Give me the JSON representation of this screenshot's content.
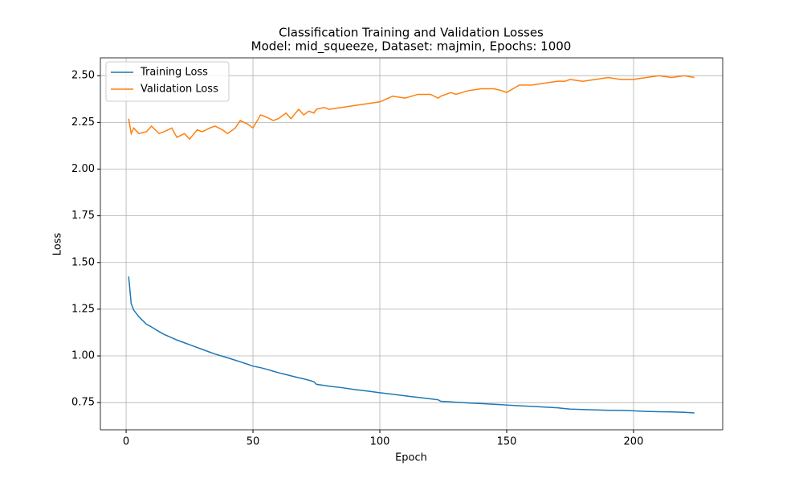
{
  "chart_data": {
    "type": "line",
    "title": "Classification Training and Validation Losses",
    "subtitle": "Model: mid_squeeze, Dataset: majmin, Epochs: 1000",
    "x_label": "Epoch",
    "y_label": "Loss",
    "x": [
      1,
      2,
      3,
      5,
      8,
      10,
      13,
      15,
      18,
      20,
      23,
      25,
      28,
      30,
      33,
      35,
      38,
      40,
      43,
      45,
      48,
      50,
      53,
      55,
      58,
      60,
      63,
      65,
      68,
      70,
      72,
      74,
      75,
      78,
      80,
      85,
      90,
      95,
      100,
      105,
      110,
      115,
      120,
      123,
      124,
      128,
      130,
      135,
      140,
      145,
      148,
      150,
      155,
      160,
      165,
      170,
      173,
      175,
      180,
      185,
      190,
      195,
      200,
      205,
      210,
      215,
      220,
      224
    ],
    "series": [
      {
        "name": "Training Loss",
        "color": "#1f77b4",
        "values": [
          1.425,
          1.28,
          1.245,
          1.21,
          1.17,
          1.155,
          1.13,
          1.115,
          1.097,
          1.085,
          1.07,
          1.06,
          1.045,
          1.035,
          1.02,
          1.01,
          0.998,
          0.99,
          0.977,
          0.968,
          0.955,
          0.945,
          0.937,
          0.93,
          0.918,
          0.91,
          0.9,
          0.893,
          0.883,
          0.877,
          0.87,
          0.862,
          0.848,
          0.842,
          0.838,
          0.83,
          0.82,
          0.812,
          0.803,
          0.795,
          0.786,
          0.778,
          0.77,
          0.765,
          0.757,
          0.754,
          0.752,
          0.748,
          0.745,
          0.741,
          0.739,
          0.737,
          0.733,
          0.73,
          0.726,
          0.722,
          0.718,
          0.715,
          0.713,
          0.711,
          0.709,
          0.708,
          0.706,
          0.703,
          0.701,
          0.7,
          0.698,
          0.695
        ]
      },
      {
        "name": "Validation Loss",
        "color": "#ff7f0e",
        "values": [
          2.27,
          2.19,
          2.22,
          2.19,
          2.2,
          2.23,
          2.19,
          2.2,
          2.22,
          2.17,
          2.19,
          2.16,
          2.21,
          2.2,
          2.22,
          2.23,
          2.21,
          2.19,
          2.22,
          2.26,
          2.24,
          2.22,
          2.29,
          2.28,
          2.26,
          2.27,
          2.3,
          2.27,
          2.32,
          2.29,
          2.31,
          2.3,
          2.32,
          2.33,
          2.32,
          2.33,
          2.34,
          2.35,
          2.36,
          2.39,
          2.38,
          2.4,
          2.4,
          2.38,
          2.39,
          2.41,
          2.4,
          2.42,
          2.43,
          2.43,
          2.42,
          2.41,
          2.45,
          2.45,
          2.46,
          2.47,
          2.47,
          2.48,
          2.47,
          2.48,
          2.49,
          2.48,
          2.48,
          2.49,
          2.5,
          2.49,
          2.5,
          2.49
        ]
      }
    ],
    "xlim": [
      -10.15,
      235.15
    ],
    "xticks": [
      0,
      50,
      100,
      150,
      200
    ],
    "ylim": [
      0.6045,
      2.5955
    ],
    "yticks": [
      0.75,
      {
        "value": 1,
        "label": "1.00"
      },
      1.25,
      {
        "value": 1.5,
        "label": "1.50"
      },
      1.75,
      {
        "value": 2,
        "label": "2.00"
      },
      2.25,
      {
        "value": 2.5,
        "label": "2.50"
      }
    ],
    "grid": true,
    "legend": "upper left"
  }
}
